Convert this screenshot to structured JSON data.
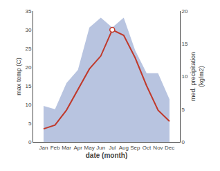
{
  "chart_data": {
    "type": "line",
    "categories": [
      "Jan",
      "Feb",
      "Mar",
      "Apr",
      "May",
      "Jun",
      "Jul",
      "Aug",
      "Sep",
      "Oct",
      "Nov",
      "Dec"
    ],
    "series": [
      {
        "type": "area",
        "axis": "y2",
        "color": "#b8c4e0",
        "values": [
          5.5,
          5.0,
          9.0,
          11.0,
          17.5,
          19.0,
          17.5,
          19.0,
          14.0,
          10.5,
          10.5,
          6.5
        ]
      },
      {
        "type": "line",
        "color": "#c0392b",
        "values": [
          3.5,
          4.5,
          8.5,
          14.0,
          19.5,
          23.0,
          30.0,
          28.5,
          22.5,
          15.0,
          8.5,
          5.5
        ]
      },
      {
        "type": "scatter",
        "marker": "hollow",
        "color": "#c0392b",
        "values": [
          null,
          null,
          null,
          null,
          null,
          null,
          30.0,
          null,
          null,
          null,
          null,
          null
        ]
      }
    ],
    "x_label": "date (month)",
    "y_label": "max temp (C)",
    "y2_label": "med. precipitation\n(kg/m2)",
    "ylim": [
      0,
      35
    ],
    "yticks": [
      0,
      5,
      10,
      15,
      20,
      25,
      30,
      35
    ],
    "y2lim": [
      0,
      20
    ],
    "y2ticks": [
      0,
      5,
      10,
      15,
      20
    ],
    "grid": false
  }
}
